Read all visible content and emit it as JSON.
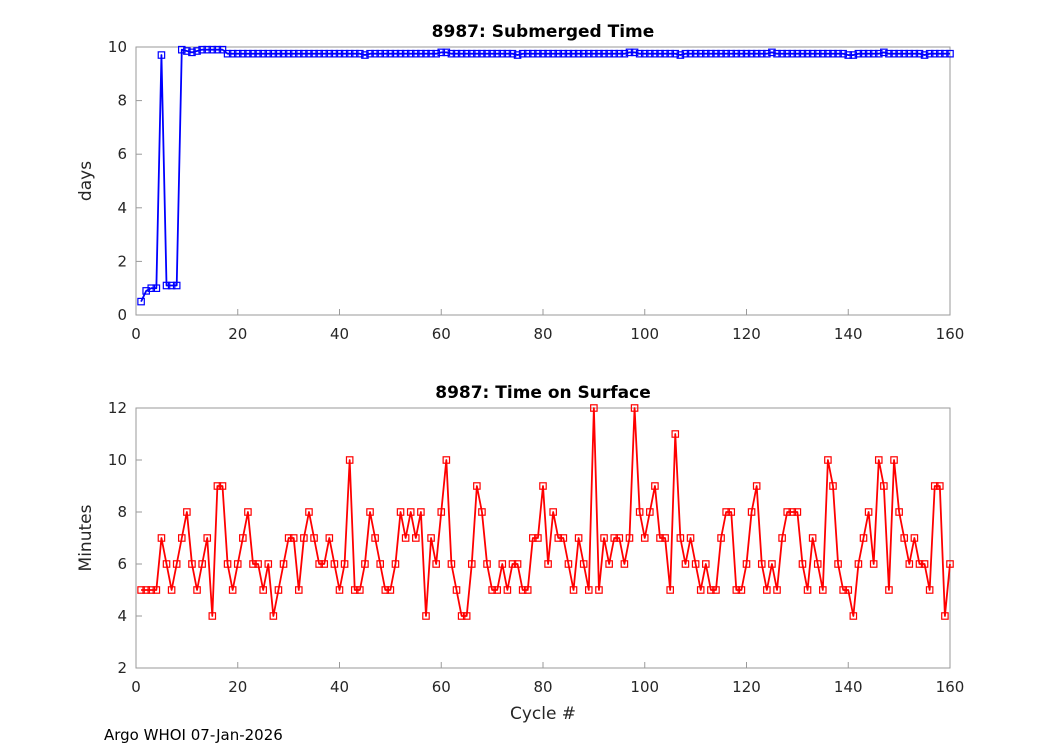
{
  "footer": {
    "credit": "Argo WHOI 07-Jan-2026"
  },
  "chart_data": [
    {
      "type": "line",
      "title": "8987: Submerged Time",
      "xlabel": "",
      "ylabel": "days",
      "xlim": [
        0,
        160
      ],
      "ylim": [
        0,
        10
      ],
      "xticks": [
        0,
        20,
        40,
        60,
        80,
        100,
        120,
        140,
        160
      ],
      "yticks": [
        0,
        2,
        4,
        6,
        8,
        10
      ],
      "grid": "off",
      "legend": "none",
      "line_color": "#0000ff",
      "marker": "open-square",
      "x_start": 1,
      "x_step": 1,
      "values": [
        0.5,
        0.9,
        1,
        1,
        9.7,
        1.1,
        1.1,
        1.1,
        9.9,
        9.85,
        9.8,
        9.85,
        9.9,
        9.9,
        9.9,
        9.9,
        9.9,
        9.75,
        9.75,
        9.75,
        9.75,
        9.75,
        9.75,
        9.75,
        9.75,
        9.75,
        9.75,
        9.75,
        9.75,
        9.75,
        9.75,
        9.75,
        9.75,
        9.75,
        9.75,
        9.75,
        9.75,
        9.75,
        9.75,
        9.75,
        9.75,
        9.75,
        9.75,
        9.75,
        9.7,
        9.75,
        9.75,
        9.75,
        9.75,
        9.75,
        9.75,
        9.75,
        9.75,
        9.75,
        9.75,
        9.75,
        9.75,
        9.75,
        9.75,
        9.8,
        9.8,
        9.75,
        9.75,
        9.75,
        9.75,
        9.75,
        9.75,
        9.75,
        9.75,
        9.75,
        9.75,
        9.75,
        9.75,
        9.75,
        9.7,
        9.75,
        9.75,
        9.75,
        9.75,
        9.75,
        9.75,
        9.75,
        9.75,
        9.75,
        9.75,
        9.75,
        9.75,
        9.75,
        9.75,
        9.75,
        9.75,
        9.75,
        9.75,
        9.75,
        9.75,
        9.75,
        9.8,
        9.8,
        9.75,
        9.75,
        9.75,
        9.75,
        9.75,
        9.75,
        9.75,
        9.75,
        9.7,
        9.75,
        9.75,
        9.75,
        9.75,
        9.75,
        9.75,
        9.75,
        9.75,
        9.75,
        9.75,
        9.75,
        9.75,
        9.75,
        9.75,
        9.75,
        9.75,
        9.75,
        9.8,
        9.75,
        9.75,
        9.75,
        9.75,
        9.75,
        9.75,
        9.75,
        9.75,
        9.75,
        9.75,
        9.75,
        9.75,
        9.75,
        9.75,
        9.7,
        9.7,
        9.75,
        9.75,
        9.75,
        9.75,
        9.75,
        9.8,
        9.75,
        9.75,
        9.75,
        9.75,
        9.75,
        9.75,
        9.75,
        9.7,
        9.75,
        9.75,
        9.75,
        9.75,
        9.75
      ]
    },
    {
      "type": "line",
      "title": "8987: Time on Surface",
      "xlabel": "Cycle #",
      "ylabel": "Minutes",
      "xlim": [
        0,
        160
      ],
      "ylim": [
        2,
        12
      ],
      "xticks": [
        0,
        20,
        40,
        60,
        80,
        100,
        120,
        140,
        160
      ],
      "yticks": [
        2,
        4,
        6,
        8,
        10,
        12
      ],
      "grid": "off",
      "legend": "none",
      "line_color": "#ff0000",
      "marker": "open-square",
      "x_start": 1,
      "x_step": 1,
      "values": [
        5,
        5,
        5,
        5,
        7,
        6,
        5,
        6,
        7,
        8,
        6,
        5,
        6,
        7,
        4,
        9,
        9,
        6,
        5,
        6,
        7,
        8,
        6,
        6,
        5,
        6,
        4,
        5,
        6,
        7,
        7,
        5,
        7,
        8,
        7,
        6,
        6,
        7,
        6,
        5,
        6,
        10,
        5,
        5,
        6,
        8,
        7,
        6,
        5,
        5,
        6,
        8,
        7,
        8,
        7,
        8,
        4,
        7,
        6,
        8,
        10,
        6,
        5,
        4,
        4,
        6,
        9,
        8,
        6,
        5,
        5,
        6,
        5,
        6,
        6,
        5,
        5,
        7,
        7,
        9,
        6,
        8,
        7,
        7,
        6,
        5,
        7,
        6,
        5,
        12,
        5,
        7,
        6,
        7,
        7,
        6,
        7,
        12,
        8,
        7,
        8,
        9,
        7,
        7,
        5,
        11,
        7,
        6,
        7,
        6,
        5,
        6,
        5,
        5,
        7,
        8,
        8,
        5,
        5,
        6,
        8,
        9,
        6,
        5,
        6,
        5,
        7,
        8,
        8,
        8,
        6,
        5,
        7,
        6,
        5,
        10,
        9,
        6,
        5,
        5,
        4,
        6,
        7,
        8,
        6,
        10,
        9,
        5,
        10,
        8,
        7,
        6,
        7,
        6,
        6,
        5,
        9,
        9,
        4,
        6
      ]
    }
  ]
}
